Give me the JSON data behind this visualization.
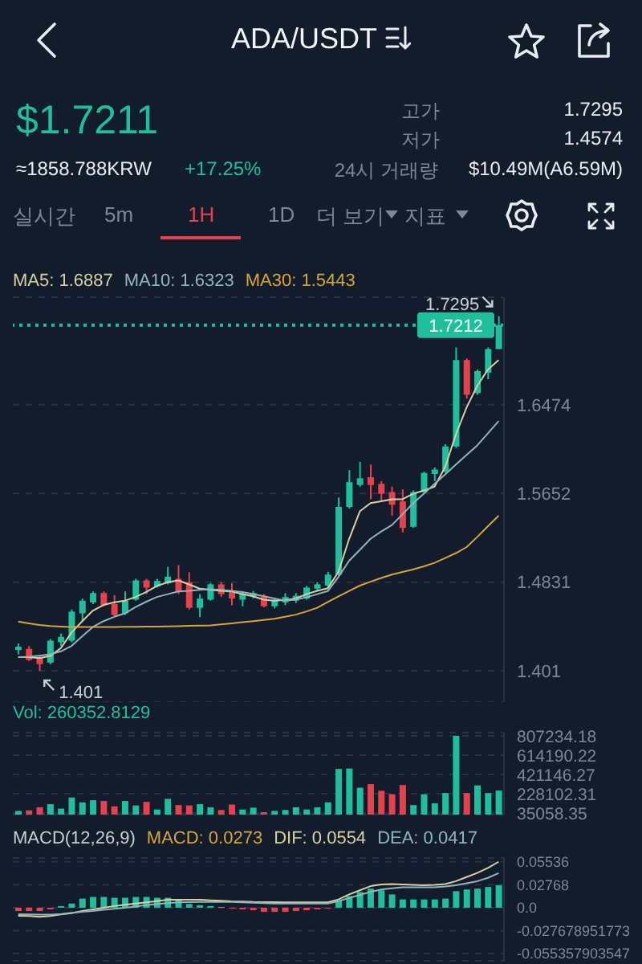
{
  "chart_data": [
    {
      "type": "candlestick",
      "title": "ADA/USDT",
      "annotations": [
        "$1.7211",
        "≈1858.788KRW",
        "+17.25%",
        "고가",
        "1.7295",
        "저가",
        "1.4574",
        "24시 거래량",
        "$10.49M(A6.59M)",
        "실시간",
        "5m",
        "1H",
        "1D",
        "더 보기",
        "지표",
        "1.7295",
        "1.401"
      ],
      "categories": [
        null,
        null,
        null,
        null,
        null,
        null,
        null,
        null,
        null,
        null,
        null,
        null,
        null,
        null,
        null,
        null,
        null,
        null,
        null,
        null,
        null,
        null,
        null,
        null,
        null,
        null,
        null,
        null,
        null,
        null,
        null,
        null,
        null,
        null,
        null,
        null,
        null,
        null,
        null,
        null,
        null,
        null,
        null,
        null,
        null,
        null
      ],
      "ohlc": [
        [
          1.4203,
          1.4263,
          1.4162,
          1.4233
        ],
        [
          1.4213,
          1.4238,
          1.4101,
          1.4111
        ],
        [
          1.4137,
          1.4152,
          1.401,
          1.4071
        ],
        [
          1.4086,
          1.4304,
          1.4071,
          1.4289
        ],
        [
          1.4274,
          1.4355,
          1.4238,
          1.4324
        ],
        [
          1.4289,
          1.4578,
          1.4274,
          1.4558
        ],
        [
          1.4542,
          1.4679,
          1.4466,
          1.4659
        ],
        [
          1.4644,
          1.4745,
          1.4629,
          1.473
        ],
        [
          1.473,
          1.4745,
          1.4608,
          1.4618
        ],
        [
          1.4629,
          1.471,
          1.4517,
          1.4527
        ],
        [
          1.4542,
          1.4745,
          1.4527,
          1.4659
        ],
        [
          1.4669,
          1.4862,
          1.4659,
          1.4847
        ],
        [
          1.4847,
          1.4862,
          1.472,
          1.4781
        ],
        [
          1.4791,
          1.4862,
          1.4781,
          1.4842
        ],
        [
          1.4821,
          1.4973,
          1.4811,
          1.4882
        ],
        [
          1.4862,
          1.4989,
          1.472,
          1.4745
        ],
        [
          1.4831,
          1.4923,
          1.4578,
          1.4593
        ],
        [
          1.4593,
          1.472,
          1.4507,
          1.4679
        ],
        [
          1.4669,
          1.4821,
          1.4659,
          1.4811
        ],
        [
          1.4811,
          1.4831,
          1.4694,
          1.472
        ],
        [
          1.4745,
          1.4821,
          1.4618,
          1.4679
        ],
        [
          1.4669,
          1.4745,
          1.4608,
          1.472
        ],
        [
          1.47,
          1.475,
          1.4679,
          1.473
        ],
        [
          1.4694,
          1.472,
          1.4598,
          1.4608
        ],
        [
          1.4608,
          1.4679,
          1.4588,
          1.4659
        ],
        [
          1.4644,
          1.473,
          1.4618,
          1.4694
        ],
        [
          1.4659,
          1.473,
          1.4639,
          1.4705
        ],
        [
          1.4679,
          1.4796,
          1.4669,
          1.4781
        ],
        [
          1.4771,
          1.4831,
          1.4745,
          1.4811
        ],
        [
          1.4799,
          1.4927,
          1.4784,
          1.4901
        ],
        [
          1.4901,
          1.5614,
          1.4886,
          1.5528
        ],
        [
          1.5528,
          1.5869,
          1.5512,
          1.5757
        ],
        [
          1.5731,
          1.5945,
          1.5716,
          1.5793
        ],
        [
          1.5803,
          1.592,
          1.5599,
          1.5731
        ],
        [
          1.5742,
          1.5767,
          1.5579,
          1.565
        ],
        [
          1.5665,
          1.5716,
          1.5446,
          1.5548
        ],
        [
          1.5579,
          1.5691,
          1.5293,
          1.5334
        ],
        [
          1.5344,
          1.5681,
          1.5334,
          1.5665
        ],
        [
          1.5665,
          1.5854,
          1.5655,
          1.5843
        ],
        [
          1.5833,
          1.5894,
          1.5767,
          1.5874
        ],
        [
          1.5854,
          1.6108,
          1.5843,
          1.6088
        ],
        [
          1.6088,
          1.7005,
          1.6073,
          1.6888
        ],
        [
          1.6888,
          1.6903,
          1.6531,
          1.6567
        ],
        [
          1.6582,
          1.6801,
          1.6567,
          1.6786
        ],
        [
          1.6771,
          1.7005,
          1.671,
          1.699
        ],
        [
          1.699,
          1.7295,
          1.699,
          1.7212
        ]
      ],
      "series": [
        {
          "name": "MA5: 1.6887",
          "type": "line",
          "color": "#d9cfa5",
          "values": [
            1.4137,
            1.4137,
            1.4127,
            1.4147,
            1.422,
            1.4365,
            1.447,
            1.4568,
            1.462,
            1.4644,
            1.466,
            1.4694,
            1.474,
            1.4796,
            1.483,
            1.4847,
            1.481,
            1.4771,
            1.476,
            1.475,
            1.4745,
            1.472,
            1.47,
            1.4669,
            1.466,
            1.4665,
            1.468,
            1.472,
            1.475,
            1.4774,
            1.4927,
            1.5232,
            1.5487,
            1.5563,
            1.558,
            1.5599,
            1.5599,
            1.565,
            1.568,
            1.5716,
            1.59,
            1.62,
            1.645,
            1.665,
            1.68,
            1.6888
          ]
        },
        {
          "name": "MA10: 1.6323",
          "type": "line",
          "color": "#8fb5bd",
          "values": [
            1.4137,
            1.414,
            1.415,
            1.4162,
            1.419,
            1.424,
            1.433,
            1.4416,
            1.447,
            1.451,
            1.4542,
            1.46,
            1.465,
            1.4694,
            1.472,
            1.4745,
            1.475,
            1.476,
            1.4765,
            1.476,
            1.475,
            1.474,
            1.472,
            1.47,
            1.468,
            1.4659,
            1.467,
            1.469,
            1.472,
            1.4748,
            1.488,
            1.5029,
            1.513,
            1.5232,
            1.53,
            1.536,
            1.546,
            1.5563,
            1.565,
            1.5742,
            1.583,
            1.592,
            1.601,
            1.6098,
            1.621,
            1.6323
          ]
        },
        {
          "name": "MA30: 1.5443",
          "type": "line",
          "color": "#d6a53c",
          "values": [
            1.4466,
            1.445,
            1.4435,
            1.4425,
            1.442,
            1.4416,
            1.4416,
            1.4416,
            1.4416,
            1.4416,
            1.4418,
            1.4418,
            1.442,
            1.442,
            1.4422,
            1.4424,
            1.4426,
            1.4428,
            1.443,
            1.444,
            1.445,
            1.446,
            1.447,
            1.448,
            1.4492,
            1.451,
            1.453,
            1.456,
            1.4593,
            1.4647,
            1.47,
            1.475,
            1.4799,
            1.4835,
            1.487,
            1.4901,
            1.4925,
            1.495,
            1.4978,
            1.501,
            1.5054,
            1.51,
            1.5156,
            1.525,
            1.535,
            1.5446
          ]
        }
      ],
      "ylim": [
        1.372,
        1.747
      ],
      "yticks": [
        1.401,
        1.4831,
        1.5652,
        1.6474
      ],
      "grid": "y",
      "legend": "top left",
      "tick_labels": "y",
      "ref_lines": [
        {
          "axis": "y",
          "value": 1.7212,
          "label": "1.7212",
          "color": "#1fbf9b",
          "line_style": "dotted"
        }
      ]
    },
    {
      "type": "bar",
      "title": "Vol: 260352.8129",
      "categories": [
        null,
        null,
        null,
        null,
        null,
        null,
        null,
        null,
        null,
        null,
        null,
        null,
        null,
        null,
        null,
        null,
        null,
        null,
        null,
        null,
        null,
        null,
        null,
        null,
        null,
        null,
        null,
        null,
        null,
        null,
        null,
        null,
        null,
        null,
        null,
        null,
        null,
        null,
        null,
        null,
        null,
        null,
        null,
        null,
        null,
        null
      ],
      "values": [
        57000,
        62000,
        93000,
        124000,
        80000,
        191000,
        142000,
        164000,
        156000,
        102000,
        156000,
        111000,
        147000,
        71000,
        178000,
        115000,
        111000,
        124000,
        93000,
        66000,
        120000,
        71000,
        89000,
        44000,
        57000,
        66000,
        93000,
        71000,
        93000,
        142000,
        477000,
        481000,
        289000,
        325000,
        258000,
        223000,
        316000,
        115000,
        223000,
        133000,
        236000,
        807000,
        236000,
        312000,
        236000,
        260000
      ],
      "colors": [
        "#1fbf9b",
        "#e5424e",
        "#e5424e",
        "#1fbf9b",
        "#1fbf9b",
        "#1fbf9b",
        "#1fbf9b",
        "#1fbf9b",
        "#e5424e",
        "#e5424e",
        "#1fbf9b",
        "#1fbf9b",
        "#e5424e",
        "#1fbf9b",
        "#1fbf9b",
        "#e5424e",
        "#e5424e",
        "#1fbf9b",
        "#1fbf9b",
        "#e5424e",
        "#e5424e",
        "#1fbf9b",
        "#1fbf9b",
        "#e5424e",
        "#1fbf9b",
        "#1fbf9b",
        "#1fbf9b",
        "#1fbf9b",
        "#1fbf9b",
        "#1fbf9b",
        "#1fbf9b",
        "#1fbf9b",
        "#1fbf9b",
        "#e5424e",
        "#e5424e",
        "#e5424e",
        "#e5424e",
        "#1fbf9b",
        "#1fbf9b",
        "#1fbf9b",
        "#1fbf9b",
        "#1fbf9b",
        "#e5424e",
        "#1fbf9b",
        "#1fbf9b",
        "#1fbf9b"
      ],
      "ylim": [
        20000,
        840000
      ],
      "yticks": [
        35058.35,
        228102.31,
        421146.27,
        614190.22,
        807234.18
      ],
      "grid": "y",
      "tick_labels": "y"
    },
    {
      "type": "bar",
      "title": "MACD(12,26,9)",
      "categories": [
        null,
        null,
        null,
        null,
        null,
        null,
        null,
        null,
        null,
        null,
        null,
        null,
        null,
        null,
        null,
        null,
        null,
        null,
        null,
        null,
        null,
        null,
        null,
        null,
        null,
        null,
        null,
        null,
        null,
        null,
        null,
        null,
        null,
        null,
        null,
        null,
        null,
        null,
        null,
        null,
        null,
        null,
        null,
        null,
        null,
        null
      ],
      "series": [
        {
          "name": "MACD: 0.0273",
          "type": "bar",
          "values": [
            -0.004,
            -0.004,
            -0.004,
            -0.002,
            0.002,
            0.005,
            0.011,
            0.013,
            0.013,
            0.012,
            0.012,
            0.013,
            0.013,
            0.012,
            0.012,
            0.01,
            0.0045,
            0.003,
            0.002,
            0.001,
            -0.001,
            -0.002,
            -0.003,
            -0.005,
            -0.005,
            -0.005,
            -0.004,
            -0.003,
            -0.002,
            -0.001,
            0.008,
            0.014,
            0.019,
            0.023,
            0.021,
            0.016,
            0.01,
            0.01,
            0.01,
            0.01,
            0.011,
            0.02,
            0.022,
            0.023,
            0.025,
            0.0273
          ],
          "colors": [
            "#e5424e",
            "#e5424e",
            "#e5424e",
            "#e5424e",
            "#1fbf9b",
            "#1fbf9b",
            "#1fbf9b",
            "#1fbf9b",
            "#1fbf9b",
            "#1fbf9b",
            "#1fbf9b",
            "#1fbf9b",
            "#1fbf9b",
            "#1fbf9b",
            "#1fbf9b",
            "#1fbf9b",
            "#1fbf9b",
            "#1fbf9b",
            "#1fbf9b",
            "#1fbf9b",
            "#e5424e",
            "#e5424e",
            "#e5424e",
            "#e5424e",
            "#e5424e",
            "#e5424e",
            "#e5424e",
            "#e5424e",
            "#e5424e",
            "#e5424e",
            "#1fbf9b",
            "#1fbf9b",
            "#1fbf9b",
            "#1fbf9b",
            "#1fbf9b",
            "#1fbf9b",
            "#1fbf9b",
            "#1fbf9b",
            "#1fbf9b",
            "#1fbf9b",
            "#1fbf9b",
            "#1fbf9b",
            "#1fbf9b",
            "#1fbf9b",
            "#1fbf9b",
            "#1fbf9b"
          ]
        },
        {
          "name": "DIF: 0.0554",
          "type": "line",
          "color": "#d9cfa5",
          "values": [
            -0.0097,
            -0.01,
            -0.011,
            -0.01,
            -0.008,
            -0.0065,
            -0.004,
            -0.002,
            0,
            0.002,
            0.0035,
            0.005,
            0.0065,
            0.008,
            0.0097,
            0.0097,
            0.0097,
            0.0097,
            0.009,
            0.0085,
            0.0078,
            0.0075,
            0.007,
            0.0068,
            0.0066,
            0.0065,
            0.0065,
            0.0065,
            0.0065,
            0.0065,
            0.01,
            0.016,
            0.021,
            0.026,
            0.028,
            0.0285,
            0.028,
            0.0275,
            0.027,
            0.0275,
            0.0285,
            0.032,
            0.037,
            0.042,
            0.048,
            0.0554
          ]
        },
        {
          "name": "DEA: 0.0417",
          "type": "line",
          "color": "#8fb5bd",
          "values": [
            -0.0078,
            -0.008,
            -0.0082,
            -0.0084,
            -0.0075,
            -0.006,
            -0.005,
            -0.004,
            -0.0025,
            -0.0013,
            0,
            0.0015,
            0.0032,
            0.0045,
            0.0055,
            0.0065,
            0.0068,
            0.007,
            0.007,
            0.007,
            0.007,
            0.0065,
            0.006,
            0.0055,
            0.005,
            0.005,
            0.005,
            0.005,
            0.005,
            0.005,
            0.008,
            0.0117,
            0.0155,
            0.019,
            0.022,
            0.0235,
            0.0246,
            0.0246,
            0.0246,
            0.0246,
            0.0255,
            0.027,
            0.0295,
            0.032,
            0.036,
            0.0417
          ]
        }
      ],
      "ylim": [
        -0.064,
        0.06
      ],
      "yticks": [
        0.05536,
        0.02768,
        {
          "value": 0,
          "label": "0.0"
        },
        -0.027678951773,
        -0.055357903547
      ],
      "grid": "y",
      "legend": "top",
      "tick_labels": "y"
    }
  ]
}
